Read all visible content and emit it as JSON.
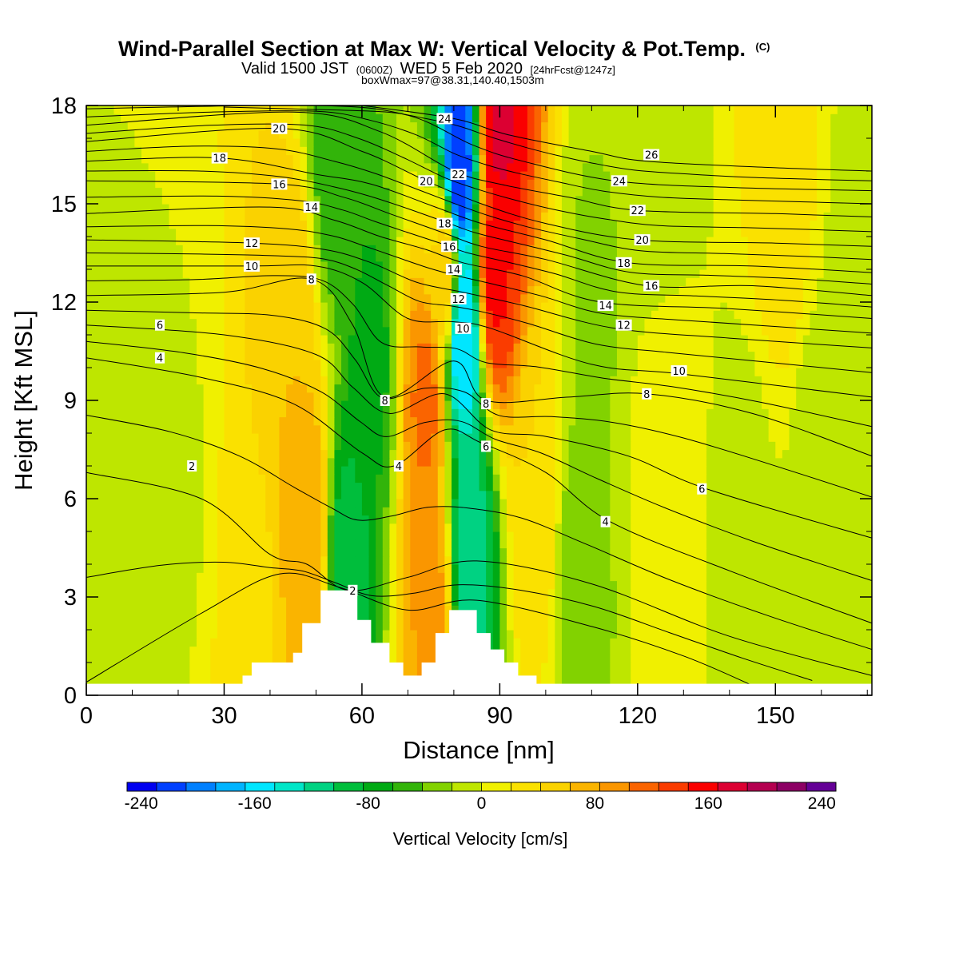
{
  "title": {
    "main": "Wind-Parallel Section at Max W: Vertical Velocity & Pot.Temp.",
    "main_suffix": "(C)",
    "sub_a": "Valid 1500 JST",
    "sub_b": "(0600Z)",
    "sub_c": "WED 5 Feb 2020",
    "sub_d": "[24hrFcst@1247z]",
    "sub2": "boxWmax=97@38.31,140.40,1503m"
  },
  "chart_data": {
    "type": "heatmap",
    "xlabel": "Distance [nm]",
    "ylabel": "Height [Kft MSL]",
    "xlim": [
      0,
      171
    ],
    "ylim": [
      0,
      18
    ],
    "xticks": [
      0,
      30,
      60,
      90,
      120,
      150
    ],
    "yticks": [
      0,
      3,
      6,
      9,
      12,
      15,
      18
    ],
    "colorbar": {
      "label": "Vertical Velocity [cm/s]",
      "range": [
        -250,
        250
      ],
      "step": 20,
      "ticks": [
        -240,
        -160,
        -80,
        0,
        80,
        160,
        240
      ],
      "colors": [
        "#0000f0",
        "#0040ff",
        "#0080ff",
        "#00b4ff",
        "#00e6ff",
        "#00e6c8",
        "#00d282",
        "#00be3c",
        "#00aa14",
        "#32b40a",
        "#82d200",
        "#bee600",
        "#f0f000",
        "#fae100",
        "#fad200",
        "#fab400",
        "#fa9600",
        "#fa6400",
        "#fa3c00",
        "#fa0000",
        "#dc0032",
        "#b40050",
        "#8c0064",
        "#640096"
      ]
    },
    "velocity_field": [
      {
        "x": 12,
        "z": 1.5,
        "value": -15
      },
      {
        "x": 20,
        "z": 6,
        "value": -12
      },
      {
        "x": 36,
        "z": 2.5,
        "value": 25
      },
      {
        "x": 48,
        "z": 5,
        "value": 70
      },
      {
        "x": 45,
        "z": 11,
        "value": 50
      },
      {
        "x": 57,
        "z": 4,
        "value": -100
      },
      {
        "x": 62,
        "z": 10,
        "value": -75
      },
      {
        "x": 54,
        "z": 16,
        "value": -60
      },
      {
        "x": 75,
        "z": 3,
        "value": 75
      },
      {
        "x": 74,
        "z": 9,
        "value": 95
      },
      {
        "x": 78,
        "z": 13,
        "value": 40
      },
      {
        "x": 83.5,
        "z": 4.5,
        "value": -120
      },
      {
        "x": 82,
        "z": 11,
        "value": -170
      },
      {
        "x": 81,
        "z": 16,
        "value": -225
      },
      {
        "x": 89,
        "z": 13,
        "value": 135
      },
      {
        "x": 90,
        "z": 17.5,
        "value": 155
      },
      {
        "x": 98,
        "z": 6,
        "value": 30
      },
      {
        "x": 107,
        "z": 4,
        "value": -40
      },
      {
        "x": 110,
        "z": 12,
        "value": -32
      },
      {
        "x": 124,
        "z": 17,
        "value": -28
      },
      {
        "x": 126,
        "z": 7,
        "value": 6
      },
      {
        "x": 143,
        "z": 5,
        "value": -18
      },
      {
        "x": 152,
        "z": 16,
        "value": 30
      },
      {
        "x": 160,
        "z": 7,
        "value": -22
      },
      {
        "x": 166,
        "z": 14,
        "value": -12
      }
    ],
    "terrain": [
      [
        30,
        0.2
      ],
      [
        34,
        0.6
      ],
      [
        36,
        1.0
      ],
      [
        42,
        1.0
      ],
      [
        45,
        1.3
      ],
      [
        47,
        2.2
      ],
      [
        50,
        2.2
      ],
      [
        51,
        3.2
      ],
      [
        58,
        3.2
      ],
      [
        59,
        2.3
      ],
      [
        61,
        2.3
      ],
      [
        62,
        1.6
      ],
      [
        65,
        1.6
      ],
      [
        66,
        1.0
      ],
      [
        68,
        1.0
      ],
      [
        69,
        0.6
      ],
      [
        72,
        0.6
      ],
      [
        73,
        1.0
      ],
      [
        75,
        1.0
      ],
      [
        76,
        1.9
      ],
      [
        78,
        1.9
      ],
      [
        79,
        2.6
      ],
      [
        84,
        2.6
      ],
      [
        85,
        1.9
      ],
      [
        87,
        1.9
      ],
      [
        88,
        1.4
      ],
      [
        90,
        1.4
      ],
      [
        91,
        1.0
      ],
      [
        93,
        1.0
      ],
      [
        94,
        0.6
      ],
      [
        97,
        0.6
      ],
      [
        98,
        0.3
      ],
      [
        100,
        0.3
      ]
    ],
    "theta_contours": [
      {
        "level": 0,
        "points": [
          [
            0,
            0.4
          ],
          [
            25,
            2.5
          ],
          [
            42,
            3.7
          ],
          [
            55,
            3.3
          ],
          [
            70,
            2.6
          ],
          [
            85,
            2.9
          ],
          [
            110,
            2.1
          ],
          [
            130,
            1.2
          ],
          [
            145,
            0.3
          ]
        ]
      },
      {
        "level": 2,
        "points": [
          [
            0,
            6.8
          ],
          [
            25,
            6.0
          ],
          [
            40,
            4.3
          ],
          [
            48,
            4.0
          ],
          [
            57,
            3.2
          ],
          [
            70,
            3.6
          ],
          [
            85,
            4.1
          ],
          [
            110,
            3.4
          ],
          [
            140,
            1.8
          ],
          [
            171,
            0.6
          ]
        ]
      },
      {
        "level": 4,
        "points": [
          [
            0,
            10.3
          ],
          [
            25,
            9.7
          ],
          [
            45,
            8.9
          ],
          [
            60,
            7.4
          ],
          [
            67,
            7.0
          ],
          [
            78,
            8.1
          ],
          [
            86,
            7.7
          ],
          [
            100,
            6.8
          ],
          [
            114,
            5.3
          ],
          [
            140,
            3.8
          ],
          [
            171,
            2.2
          ]
        ]
      },
      {
        "level": 6,
        "points": [
          [
            0,
            11.3
          ],
          [
            30,
            11.0
          ],
          [
            50,
            10.4
          ],
          [
            58,
            9.4
          ],
          [
            66,
            8.6
          ],
          [
            78,
            9.2
          ],
          [
            88,
            8.1
          ],
          [
            100,
            7.9
          ],
          [
            118,
            7.3
          ],
          [
            135,
            6.3
          ],
          [
            171,
            4.8
          ]
        ]
      },
      {
        "level": 8,
        "points": [
          [
            0,
            12.2
          ],
          [
            30,
            12.3
          ],
          [
            49,
            12.7
          ],
          [
            58,
            11.3
          ],
          [
            65,
            9.1
          ],
          [
            80,
            10.2
          ],
          [
            87,
            9.0
          ],
          [
            105,
            9.1
          ],
          [
            122,
            9.2
          ],
          [
            145,
            8.6
          ],
          [
            171,
            7.3
          ]
        ]
      },
      {
        "level": 10,
        "points": [
          [
            0,
            13.1
          ],
          [
            36,
            13.1
          ],
          [
            50,
            13.1
          ],
          [
            60,
            12.6
          ],
          [
            70,
            11.5
          ],
          [
            80,
            11.4
          ],
          [
            88,
            11.2
          ],
          [
            110,
            10.1
          ],
          [
            130,
            9.8
          ],
          [
            171,
            9.1
          ]
        ]
      },
      {
        "level": 12,
        "points": [
          [
            0,
            13.9
          ],
          [
            36,
            13.8
          ],
          [
            52,
            13.6
          ],
          [
            62,
            13.2
          ],
          [
            72,
            12.6
          ],
          [
            82,
            12.3
          ],
          [
            95,
            11.9
          ],
          [
            115,
            11.2
          ],
          [
            140,
            10.9
          ],
          [
            171,
            10.6
          ]
        ]
      },
      {
        "level": 14,
        "points": [
          [
            0,
            14.7
          ],
          [
            40,
            14.9
          ],
          [
            54,
            14.5
          ],
          [
            64,
            14.0
          ],
          [
            74,
            13.6
          ],
          [
            82,
            13.2
          ],
          [
            95,
            12.8
          ],
          [
            112,
            12.0
          ],
          [
            140,
            11.8
          ],
          [
            171,
            11.5
          ]
        ]
      },
      {
        "level": 16,
        "points": [
          [
            0,
            15.7
          ],
          [
            42,
            15.6
          ],
          [
            56,
            15.2
          ],
          [
            66,
            14.7
          ],
          [
            78,
            14.1
          ],
          [
            86,
            13.7
          ],
          [
            100,
            13.3
          ],
          [
            122,
            12.5
          ],
          [
            145,
            12.5
          ],
          [
            171,
            12.2
          ]
        ]
      },
      {
        "level": 18,
        "points": [
          [
            0,
            16.3
          ],
          [
            29,
            16.4
          ],
          [
            50,
            15.9
          ],
          [
            62,
            15.6
          ],
          [
            76,
            14.9
          ],
          [
            86,
            14.4
          ],
          [
            100,
            13.9
          ],
          [
            118,
            13.2
          ],
          [
            145,
            13.1
          ],
          [
            171,
            12.9
          ]
        ]
      },
      {
        "level": 20,
        "points": [
          [
            0,
            16.9
          ],
          [
            42,
            17.3
          ],
          [
            60,
            16.6
          ],
          [
            74,
            15.7
          ],
          [
            86,
            15.0
          ],
          [
            100,
            14.4
          ],
          [
            120,
            13.9
          ],
          [
            150,
            13.8
          ],
          [
            171,
            13.7
          ]
        ]
      },
      {
        "level": 22,
        "points": [
          [
            0,
            17.4
          ],
          [
            45,
            17.8
          ],
          [
            64,
            17.2
          ],
          [
            80,
            16.0
          ],
          [
            90,
            15.6
          ],
          [
            105,
            15.2
          ],
          [
            120,
            14.8
          ],
          [
            150,
            14.7
          ],
          [
            171,
            14.6
          ]
        ]
      },
      {
        "level": 24,
        "points": [
          [
            0,
            17.9
          ],
          [
            50,
            18.0
          ],
          [
            70,
            17.7
          ],
          [
            84,
            16.8
          ],
          [
            95,
            16.3
          ],
          [
            115,
            15.7
          ],
          [
            140,
            15.5
          ],
          [
            171,
            15.4
          ]
        ]
      },
      {
        "level": 26,
        "points": [
          [
            60,
            18.0
          ],
          [
            80,
            17.6
          ],
          [
            92,
            17.1
          ],
          [
            110,
            16.6
          ],
          [
            122,
            16.3
          ],
          [
            150,
            16.1
          ],
          [
            171,
            16.0
          ]
        ]
      }
    ],
    "contour_labels": [
      {
        "text": "2",
        "x": 23,
        "z": 7.0
      },
      {
        "text": "2",
        "x": 58,
        "z": 3.2
      },
      {
        "text": "4",
        "x": 16,
        "z": 10.3
      },
      {
        "text": "4",
        "x": 68,
        "z": 7.0
      },
      {
        "text": "4",
        "x": 113,
        "z": 5.3
      },
      {
        "text": "6",
        "x": 16,
        "z": 11.3
      },
      {
        "text": "6",
        "x": 87,
        "z": 7.6
      },
      {
        "text": "6",
        "x": 134,
        "z": 6.3
      },
      {
        "text": "8",
        "x": 49,
        "z": 12.7
      },
      {
        "text": "8",
        "x": 65,
        "z": 9.0
      },
      {
        "text": "8",
        "x": 87,
        "z": 8.9
      },
      {
        "text": "8",
        "x": 122,
        "z": 9.2
      },
      {
        "text": "10",
        "x": 36,
        "z": 13.1
      },
      {
        "text": "10",
        "x": 82,
        "z": 11.2
      },
      {
        "text": "10",
        "x": 129,
        "z": 9.9
      },
      {
        "text": "12",
        "x": 36,
        "z": 13.8
      },
      {
        "text": "12",
        "x": 81,
        "z": 12.1
      },
      {
        "text": "12",
        "x": 117,
        "z": 11.3
      },
      {
        "text": "14",
        "x": 49,
        "z": 14.9
      },
      {
        "text": "14",
        "x": 80,
        "z": 13.0
      },
      {
        "text": "14",
        "x": 113,
        "z": 11.9
      },
      {
        "text": "16",
        "x": 42,
        "z": 15.6
      },
      {
        "text": "16",
        "x": 79,
        "z": 13.7
      },
      {
        "text": "16",
        "x": 123,
        "z": 12.5
      },
      {
        "text": "18",
        "x": 29,
        "z": 16.4
      },
      {
        "text": "18",
        "x": 78,
        "z": 14.4
      },
      {
        "text": "18",
        "x": 117,
        "z": 13.2
      },
      {
        "text": "20",
        "x": 42,
        "z": 17.3
      },
      {
        "text": "20",
        "x": 74,
        "z": 15.7
      },
      {
        "text": "20",
        "x": 121,
        "z": 13.9
      },
      {
        "text": "22",
        "x": 81,
        "z": 15.9
      },
      {
        "text": "22",
        "x": 120,
        "z": 14.8
      },
      {
        "text": "24",
        "x": 78,
        "z": 17.6
      },
      {
        "text": "24",
        "x": 116,
        "z": 15.7
      },
      {
        "text": "26",
        "x": 123,
        "z": 16.5
      }
    ]
  }
}
